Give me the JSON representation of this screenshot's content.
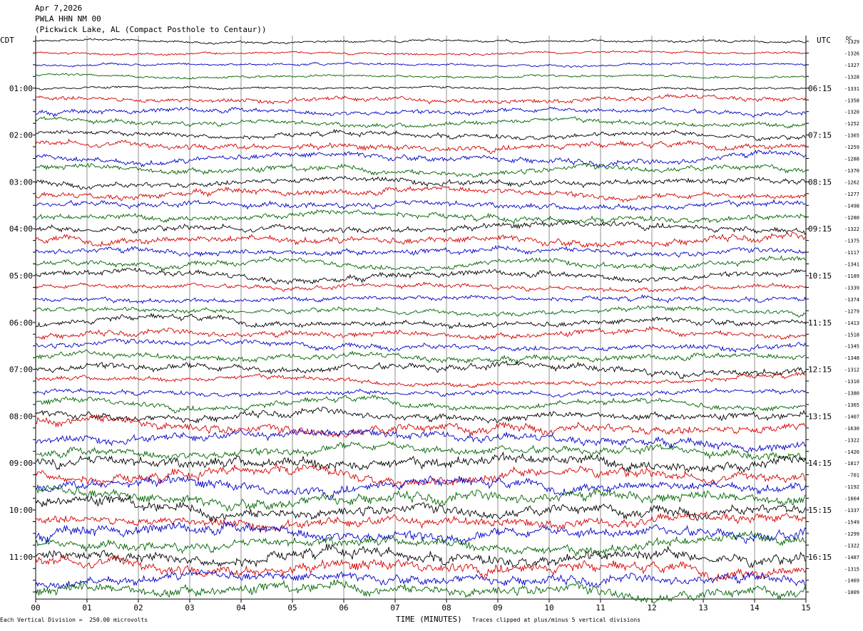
{
  "header": {
    "date": "Apr 7,2026",
    "station": "PWLA HHN NM 00",
    "location": "(Pickwick Lake, AL (Compact Posthole to Centaur))"
  },
  "tz_left": "CDT",
  "tz_right": "UTC",
  "dc_label": "DC",
  "footer": {
    "scale": "Each Vertical Division =  250.00 microvolts",
    "xaxis_title": "TIME (MINUTES)",
    "clip_note": "Traces clipped at plus/minus 5 vertical divisions"
  },
  "colors": {
    "cycle": [
      "#000000",
      "#d40000",
      "#0000c8",
      "#006400"
    ]
  },
  "chart_data": {
    "type": "line",
    "x_ticks": [
      "00",
      "01",
      "02",
      "03",
      "04",
      "05",
      "06",
      "07",
      "08",
      "09",
      "10",
      "11",
      "12",
      "13",
      "14",
      "15"
    ],
    "xlim": [
      0,
      15
    ],
    "left_hour_labels": [
      "01:00",
      "02:00",
      "03:00",
      "04:00",
      "05:00",
      "06:00",
      "07:00",
      "08:00",
      "09:00",
      "10:00",
      "11:00"
    ],
    "right_hour_labels": [
      "06:15",
      "07:15",
      "08:15",
      "09:15",
      "10:15",
      "11:15",
      "12:15",
      "13:15",
      "14:15",
      "15:15",
      "16:15"
    ],
    "trace_dc_values": [
      "-1329",
      "-1326",
      "-1327",
      "-1328",
      "-1331",
      "-1358",
      "-1320",
      "-1252",
      "-1365",
      "-1259",
      "-1288",
      "-1370",
      "-1262",
      "-1277",
      "-1498",
      "-1280",
      "-1322",
      "-1375",
      "-1117",
      "-1341",
      "-1189",
      "-1339",
      "-1374",
      "-1279",
      "-1413",
      "-1518",
      "-1345",
      "-1348",
      "-1312",
      "-1310",
      "-1380",
      "-1365",
      "-1407",
      "-1630",
      "-1322",
      "-1426",
      "-1817",
      "-701",
      "-1192",
      "-1664",
      "-1337",
      "-1549",
      "-1299",
      "-1322",
      "-1487",
      "-1315",
      "-1469",
      "-1009"
    ],
    "noise_level": [
      2,
      2,
      2,
      2,
      2,
      4,
      4,
      4,
      4,
      5,
      5,
      5,
      5,
      5,
      5,
      5,
      5,
      6,
      5,
      5,
      5,
      4,
      4,
      4,
      5,
      5,
      5,
      5,
      6,
      4,
      4,
      5,
      6,
      8,
      7,
      7,
      9,
      8,
      8,
      9,
      9,
      8,
      9,
      8,
      9,
      9,
      8,
      9
    ]
  }
}
